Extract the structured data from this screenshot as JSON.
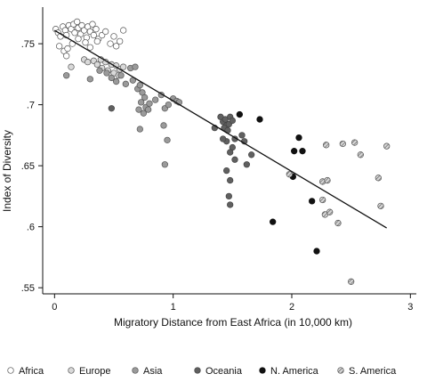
{
  "chart_data": {
    "type": "scatter",
    "xlabel": "Migratory Distance from East Africa (in 10,000 km)",
    "ylabel": "Index of Diversity",
    "xlim": [
      -0.1,
      3.05
    ],
    "ylim": [
      0.545,
      0.78
    ],
    "xticks": [
      {
        "v": 0,
        "label": "0"
      },
      {
        "v": 1,
        "label": "1"
      },
      {
        "v": 2,
        "label": "2"
      },
      {
        "v": 3,
        "label": "3"
      }
    ],
    "yticks": [
      {
        "v": 0.55,
        "label": ".55"
      },
      {
        "v": 0.6,
        "label": ".6"
      },
      {
        "v": 0.65,
        "label": ".65"
      },
      {
        "v": 0.7,
        "label": ".7"
      },
      {
        "v": 0.75,
        "label": ".75"
      }
    ],
    "grid": false,
    "legend_position": "bottom",
    "trendline": {
      "x": [
        0.0,
        2.8
      ],
      "y": [
        0.761,
        0.599
      ]
    },
    "series": [
      {
        "name": "Africa",
        "fill": "#ffffff",
        "stroke": "#555555",
        "pattern": "none",
        "points": [
          [
            0.01,
            0.762
          ],
          [
            0.03,
            0.759
          ],
          [
            0.05,
            0.756
          ],
          [
            0.07,
            0.764
          ],
          [
            0.09,
            0.761
          ],
          [
            0.1,
            0.757
          ],
          [
            0.12,
            0.765
          ],
          [
            0.14,
            0.762
          ],
          [
            0.16,
            0.766
          ],
          [
            0.17,
            0.759
          ],
          [
            0.19,
            0.768
          ],
          [
            0.2,
            0.763
          ],
          [
            0.22,
            0.758
          ],
          [
            0.23,
            0.765
          ],
          [
            0.25,
            0.761
          ],
          [
            0.27,
            0.755
          ],
          [
            0.28,
            0.764
          ],
          [
            0.3,
            0.76
          ],
          [
            0.32,
            0.766
          ],
          [
            0.33,
            0.757
          ],
          [
            0.35,
            0.762
          ],
          [
            0.37,
            0.754
          ],
          [
            0.4,
            0.757
          ],
          [
            0.43,
            0.76
          ],
          [
            0.47,
            0.75
          ],
          [
            0.5,
            0.756
          ],
          [
            0.52,
            0.748
          ],
          [
            0.55,
            0.752
          ],
          [
            0.58,
            0.761
          ],
          [
            0.04,
            0.748
          ],
          [
            0.08,
            0.744
          ],
          [
            0.15,
            0.75
          ],
          [
            0.2,
            0.754
          ],
          [
            0.26,
            0.751
          ],
          [
            0.3,
            0.747
          ],
          [
            0.36,
            0.752
          ],
          [
            0.11,
            0.746
          ],
          [
            0.1,
            0.74
          ]
        ]
      },
      {
        "name": "Europe",
        "fill": "#d9d9d9",
        "stroke": "#555555",
        "pattern": "none",
        "points": [
          [
            0.14,
            0.731
          ],
          [
            0.25,
            0.737
          ],
          [
            0.28,
            0.735
          ],
          [
            0.33,
            0.736
          ],
          [
            0.36,
            0.733
          ],
          [
            0.4,
            0.73
          ],
          [
            0.43,
            0.735
          ],
          [
            0.48,
            0.733
          ],
          [
            0.52,
            0.732
          ],
          [
            0.55,
            0.729
          ],
          [
            0.58,
            0.731
          ],
          [
            0.45,
            0.728
          ],
          [
            0.5,
            0.726
          ],
          [
            0.54,
            0.724
          ],
          [
            0.39,
            0.737
          ]
        ]
      },
      {
        "name": "Asia",
        "fill": "#9a9a9a",
        "stroke": "#555555",
        "pattern": "none",
        "points": [
          [
            0.1,
            0.724
          ],
          [
            0.3,
            0.721
          ],
          [
            0.38,
            0.728
          ],
          [
            0.44,
            0.726
          ],
          [
            0.48,
            0.722
          ],
          [
            0.52,
            0.719
          ],
          [
            0.56,
            0.724
          ],
          [
            0.6,
            0.717
          ],
          [
            0.64,
            0.73
          ],
          [
            0.68,
            0.731
          ],
          [
            0.66,
            0.72
          ],
          [
            0.7,
            0.713
          ],
          [
            0.72,
            0.716
          ],
          [
            0.74,
            0.71
          ],
          [
            0.76,
            0.706
          ],
          [
            0.73,
            0.702
          ],
          [
            0.77,
            0.698
          ],
          [
            0.79,
            0.696
          ],
          [
            0.71,
            0.696
          ],
          [
            0.75,
            0.693
          ],
          [
            0.8,
            0.701
          ],
          [
            0.85,
            0.704
          ],
          [
            0.9,
            0.708
          ],
          [
            0.93,
            0.697
          ],
          [
            0.96,
            0.7
          ],
          [
            1.0,
            0.705
          ],
          [
            1.03,
            0.703
          ],
          [
            0.92,
            0.683
          ],
          [
            0.95,
            0.671
          ],
          [
            0.93,
            0.651
          ],
          [
            0.72,
            0.68
          ],
          [
            1.05,
            0.702
          ]
        ]
      },
      {
        "name": "Oceania",
        "fill": "#606060",
        "stroke": "#444444",
        "pattern": "none",
        "points": [
          [
            0.48,
            0.697
          ],
          [
            1.4,
            0.69
          ],
          [
            1.42,
            0.686
          ],
          [
            1.44,
            0.688
          ],
          [
            1.45,
            0.683
          ],
          [
            1.47,
            0.684
          ],
          [
            1.48,
            0.69
          ],
          [
            1.43,
            0.681
          ],
          [
            1.46,
            0.679
          ],
          [
            1.5,
            0.687
          ],
          [
            1.52,
            0.672
          ],
          [
            1.45,
            0.67
          ],
          [
            1.5,
            0.665
          ],
          [
            1.48,
            0.661
          ],
          [
            1.52,
            0.655
          ],
          [
            1.45,
            0.646
          ],
          [
            1.48,
            0.638
          ],
          [
            1.47,
            0.625
          ],
          [
            1.48,
            0.618
          ],
          [
            1.6,
            0.67
          ],
          [
            1.66,
            0.659
          ],
          [
            1.58,
            0.675
          ],
          [
            1.62,
            0.651
          ],
          [
            1.42,
            0.672
          ],
          [
            1.35,
            0.681
          ]
        ]
      },
      {
        "name": "N. America",
        "fill": "#111111",
        "stroke": "#111111",
        "pattern": "none",
        "points": [
          [
            1.56,
            0.692
          ],
          [
            1.73,
            0.688
          ],
          [
            2.02,
            0.662
          ],
          [
            2.06,
            0.673
          ],
          [
            2.09,
            0.662
          ],
          [
            2.01,
            0.641
          ],
          [
            2.17,
            0.621
          ],
          [
            2.21,
            0.58
          ],
          [
            1.84,
            0.604
          ]
        ]
      },
      {
        "name": "S. America",
        "fill": "#c8c8c8",
        "stroke": "#555555",
        "pattern": "hatch",
        "points": [
          [
            1.98,
            0.643
          ],
          [
            2.29,
            0.667
          ],
          [
            2.43,
            0.668
          ],
          [
            2.53,
            0.669
          ],
          [
            2.58,
            0.659
          ],
          [
            2.8,
            0.666
          ],
          [
            2.73,
            0.64
          ],
          [
            2.26,
            0.637
          ],
          [
            2.3,
            0.638
          ],
          [
            2.26,
            0.622
          ],
          [
            2.28,
            0.61
          ],
          [
            2.32,
            0.612
          ],
          [
            2.39,
            0.603
          ],
          [
            2.75,
            0.617
          ],
          [
            2.5,
            0.555
          ]
        ]
      }
    ]
  }
}
